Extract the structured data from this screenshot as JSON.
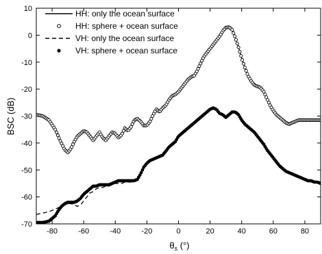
{
  "chart_data": {
    "type": "line",
    "xlabel_main": "θ",
    "xlabel_sub": "s",
    "xlabel_unit": " (°)",
    "ylabel": "BSC (dB)",
    "xlim": [
      -90,
      90
    ],
    "ylim": [
      -70,
      10
    ],
    "x_ticks": [
      -80,
      -60,
      -40,
      -20,
      0,
      20,
      40,
      60,
      80
    ],
    "y_ticks": [
      10,
      0,
      -10,
      -20,
      -30,
      -40,
      -50,
      -60,
      -70
    ],
    "legend_position": "top-left",
    "series": [
      {
        "name": "HH: only the ocean surface",
        "style": "solid-line",
        "color": "#000000",
        "x": [
          -90,
          -86,
          -82,
          -78,
          -75,
          -72,
          -70,
          -68,
          -66,
          -64,
          -62,
          -60,
          -58,
          -56,
          -54,
          -52,
          -50,
          -48,
          -46,
          -44,
          -42,
          -40,
          -38,
          -36,
          -34,
          -32,
          -30,
          -28,
          -26,
          -24,
          -22,
          -20,
          -18,
          -16,
          -14,
          -12,
          -10,
          -8,
          -6,
          -4,
          -2,
          0,
          2,
          4,
          6,
          8,
          10,
          12,
          14,
          16,
          18,
          20,
          22,
          24,
          26,
          28,
          30,
          32,
          34,
          36,
          38,
          40,
          42,
          44,
          46,
          48,
          50,
          52,
          54,
          56,
          58,
          60,
          62,
          64,
          66,
          68,
          70,
          72,
          74,
          76,
          78,
          80,
          82,
          84,
          86,
          88,
          90
        ],
        "y": [
          -29.5,
          -30,
          -31.5,
          -35,
          -39,
          -42.5,
          -43.5,
          -42,
          -39.5,
          -37.5,
          -36.5,
          -35.5,
          -36,
          -37.5,
          -39,
          -37.5,
          -36,
          -38,
          -39,
          -37.5,
          -36,
          -36.5,
          -38,
          -37,
          -34.5,
          -35.5,
          -34,
          -31.5,
          -31,
          -32,
          -33.5,
          -33.5,
          -32,
          -29.5,
          -27.5,
          -28.5,
          -27,
          -26,
          -24,
          -22.5,
          -22,
          -21,
          -19.5,
          -18,
          -16.5,
          -15.5,
          -15,
          -13,
          -10.5,
          -8,
          -6.5,
          -5,
          -3.5,
          -2,
          -0.5,
          1.5,
          2.8,
          3,
          2,
          -1,
          -4.5,
          -8.5,
          -12,
          -15,
          -17,
          -18.5,
          -19,
          -19.5,
          -21,
          -23.5,
          -26,
          -28,
          -29.5,
          -30.5,
          -31.5,
          -32.5,
          -33,
          -32.5,
          -32,
          -31.5,
          -31.5,
          -31.5,
          -31.5,
          -31.5,
          -31.5,
          -31.5,
          -31.5
        ]
      },
      {
        "name": "HH: sphere + ocean surface",
        "style": "open-circles",
        "color": "#000000",
        "x": [
          -90,
          -86,
          -82,
          -78,
          -75,
          -72,
          -70,
          -68,
          -66,
          -64,
          -62,
          -60,
          -58,
          -56,
          -54,
          -52,
          -50,
          -48,
          -46,
          -44,
          -42,
          -40,
          -38,
          -36,
          -34,
          -32,
          -30,
          -28,
          -26,
          -24,
          -22,
          -20,
          -18,
          -16,
          -14,
          -12,
          -10,
          -8,
          -6,
          -4,
          -2,
          0,
          2,
          4,
          6,
          8,
          10,
          12,
          14,
          16,
          18,
          20,
          22,
          24,
          26,
          28,
          30,
          32,
          34,
          36,
          38,
          40,
          42,
          44,
          46,
          48,
          50,
          52,
          54,
          56,
          58,
          60,
          62,
          64,
          66,
          68,
          70,
          72,
          74,
          76,
          78,
          80,
          82,
          84,
          86,
          88,
          90
        ],
        "y": [
          -29.5,
          -30,
          -31.5,
          -35,
          -39,
          -42.5,
          -43.5,
          -42,
          -39.5,
          -37.5,
          -36.5,
          -35.5,
          -36,
          -37.5,
          -39,
          -37.5,
          -36,
          -38,
          -39,
          -37.5,
          -36,
          -36.5,
          -38,
          -37,
          -34.5,
          -35.5,
          -34,
          -31.5,
          -31,
          -32,
          -33.5,
          -33.5,
          -32,
          -29.5,
          -27.5,
          -28.5,
          -27,
          -26,
          -24,
          -22.5,
          -22,
          -21,
          -19.5,
          -18,
          -16.5,
          -15.5,
          -15,
          -13,
          -10.5,
          -8,
          -6.5,
          -5,
          -3.5,
          -2,
          -0.5,
          1.5,
          2.8,
          3,
          2,
          -1,
          -4.5,
          -8.5,
          -12,
          -15,
          -17,
          -18.5,
          -19,
          -19.5,
          -21,
          -23.5,
          -26,
          -28,
          -29.5,
          -30.5,
          -31.5,
          -32.5,
          -33,
          -32.5,
          -32,
          -31.5,
          -31.5,
          -31.5,
          -31.5,
          -31.5,
          -31.5,
          -31.5,
          -31.5
        ]
      },
      {
        "name": "VH: only the ocean surface",
        "style": "dashed-line",
        "color": "#000000",
        "x": [
          -90,
          -86,
          -82,
          -78,
          -76,
          -74,
          -72,
          -70,
          -68,
          -66,
          -64,
          -62,
          -60,
          -58,
          -56,
          -54,
          -52,
          -50,
          -48,
          -46,
          -44,
          -42,
          -40,
          -38,
          -36,
          -34,
          -32,
          -30,
          -28,
          -26,
          -24,
          -22,
          -20,
          -18,
          -16,
          -14,
          -12,
          -10,
          -8,
          -6,
          -4,
          -2,
          0,
          2,
          4,
          6,
          8,
          10,
          12,
          14,
          16,
          18,
          20,
          22,
          24,
          26,
          28,
          30,
          32,
          34,
          36,
          38,
          40,
          42,
          44,
          46,
          48,
          50,
          52,
          54,
          56,
          58,
          60,
          62,
          64,
          66,
          68,
          70,
          72,
          74,
          76,
          78,
          80,
          82,
          84,
          86,
          88,
          90
        ],
        "y": [
          -66.5,
          -66,
          -65.5,
          -64.5,
          -64,
          -63.5,
          -63,
          -62.5,
          -62.5,
          -63,
          -63.5,
          -63,
          -61.5,
          -60,
          -58.5,
          -58,
          -57,
          -56.5,
          -56.5,
          -56,
          -56,
          -55.5,
          -55,
          -55,
          -55,
          -54.5,
          -54.5,
          -54.5,
          -54,
          -53.5,
          -51.5,
          -49,
          -47.5,
          -46.5,
          -46,
          -45.5,
          -45,
          -44.5,
          -43,
          -41.5,
          -40.5,
          -39.5,
          -37.5,
          -36.5,
          -35.5,
          -34.5,
          -33.5,
          -32.5,
          -31.5,
          -30.5,
          -29.5,
          -28.5,
          -27.5,
          -27,
          -27.5,
          -29,
          -29.5,
          -30.5,
          -29.5,
          -28.5,
          -28.5,
          -29.5,
          -31.5,
          -33,
          -34,
          -35,
          -36,
          -37.5,
          -39,
          -40.5,
          -42.5,
          -44,
          -45.5,
          -47,
          -48.5,
          -49.5,
          -50.5,
          -51,
          -51.5,
          -52,
          -52.5,
          -53,
          -53.5,
          -54,
          -54,
          -54.5,
          -54.5,
          -55
        ]
      },
      {
        "name": "VH: sphere + ocean surface",
        "style": "filled-circles",
        "color": "#000000",
        "x": [
          -90,
          -86,
          -82,
          -78,
          -76,
          -74,
          -72,
          -70,
          -68,
          -66,
          -64,
          -62,
          -60,
          -58,
          -56,
          -54,
          -52,
          -50,
          -48,
          -46,
          -44,
          -42,
          -40,
          -38,
          -36,
          -34,
          -32,
          -30,
          -28,
          -26,
          -24,
          -22,
          -20,
          -18,
          -16,
          -14,
          -12,
          -10,
          -8,
          -6,
          -4,
          -2,
          0,
          2,
          4,
          6,
          8,
          10,
          12,
          14,
          16,
          18,
          20,
          22,
          24,
          26,
          28,
          30,
          32,
          34,
          36,
          38,
          40,
          42,
          44,
          46,
          48,
          50,
          52,
          54,
          56,
          58,
          60,
          62,
          64,
          66,
          68,
          70,
          72,
          74,
          76,
          78,
          80,
          82,
          84,
          86,
          88,
          90
        ],
        "y": [
          -69.5,
          -69.5,
          -69,
          -67,
          -65,
          -63.5,
          -62.5,
          -62,
          -62,
          -62,
          -61.5,
          -60.5,
          -59,
          -58,
          -57,
          -56,
          -56,
          -55.5,
          -55.5,
          -55.5,
          -55.5,
          -55,
          -54.5,
          -54,
          -54,
          -54,
          -54,
          -54,
          -54,
          -53.5,
          -51.5,
          -49,
          -47.5,
          -46.5,
          -46,
          -45.5,
          -45,
          -44.5,
          -43,
          -41.5,
          -40.5,
          -39.5,
          -37.5,
          -36.5,
          -35.5,
          -34.5,
          -33.5,
          -32.5,
          -31.5,
          -30.5,
          -29.5,
          -28.5,
          -27.5,
          -27,
          -27.5,
          -29,
          -29.5,
          -30.5,
          -29.5,
          -28.5,
          -28.5,
          -29.5,
          -31.5,
          -33,
          -34,
          -35,
          -36,
          -37.5,
          -39,
          -40.5,
          -42.5,
          -44,
          -45.5,
          -47,
          -48.5,
          -49.5,
          -50.5,
          -51,
          -51.5,
          -52,
          -52.5,
          -53,
          -53.5,
          -54,
          -54,
          -54.5,
          -54.5,
          -55
        ]
      }
    ]
  }
}
